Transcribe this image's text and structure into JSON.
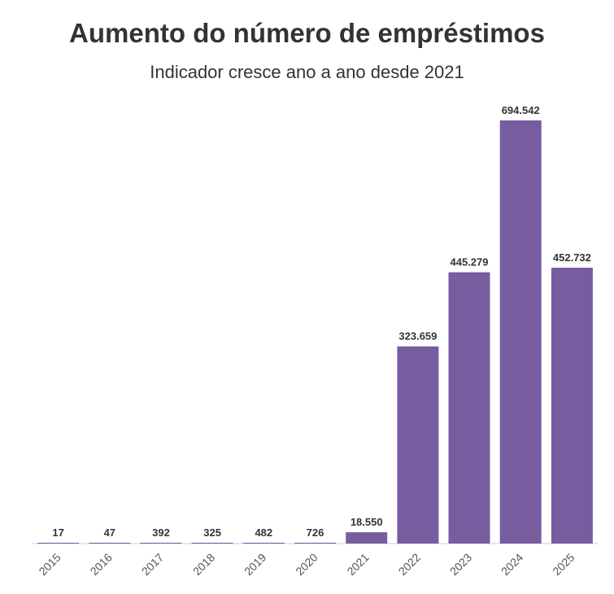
{
  "chart_data": {
    "type": "bar",
    "title": "Aumento do número de empréstimos",
    "subtitle": "Indicador cresce ano a ano desde 2021",
    "xlabel": "",
    "ylabel": "",
    "categories": [
      "2015",
      "2016",
      "2017",
      "2018",
      "2019",
      "2020",
      "2021",
      "2022",
      "2023",
      "2024",
      "2025"
    ],
    "values": [
      17,
      47,
      392,
      325,
      482,
      726,
      18550,
      323659,
      445279,
      694542,
      452732
    ],
    "value_labels": [
      "17",
      "47",
      "392",
      "325",
      "482",
      "726",
      "18.550",
      "323.659",
      "445.279",
      "694.542",
      "452.732"
    ],
    "ylim": [
      0,
      714000
    ],
    "grid": false,
    "legend": "none",
    "colors": {
      "bar": "#775ca0",
      "axis": "#cccccc",
      "text": "#333333",
      "tick": "#555555"
    }
  }
}
